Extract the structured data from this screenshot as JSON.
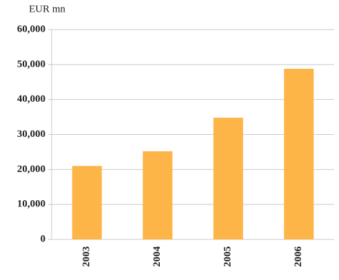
{
  "chart_data": {
    "type": "bar",
    "y_label": "EUR mn",
    "categories": [
      "2003",
      "2004",
      "2005",
      "2006"
    ],
    "values": [
      21000,
      25200,
      34800,
      48800
    ],
    "color": "#fdb548",
    "ylim": [
      0,
      60000
    ],
    "yticks": [
      0,
      {
        "value": 10000,
        "label": "10,000"
      },
      {
        "value": 20000,
        "label": "20,000"
      },
      {
        "value": 30000,
        "label": "30,000"
      },
      {
        "value": 40000,
        "label": "40,000"
      },
      {
        "value": 50000,
        "label": "50,000"
      },
      {
        "value": 60000,
        "label": "60,000"
      }
    ],
    "grid": true
  }
}
